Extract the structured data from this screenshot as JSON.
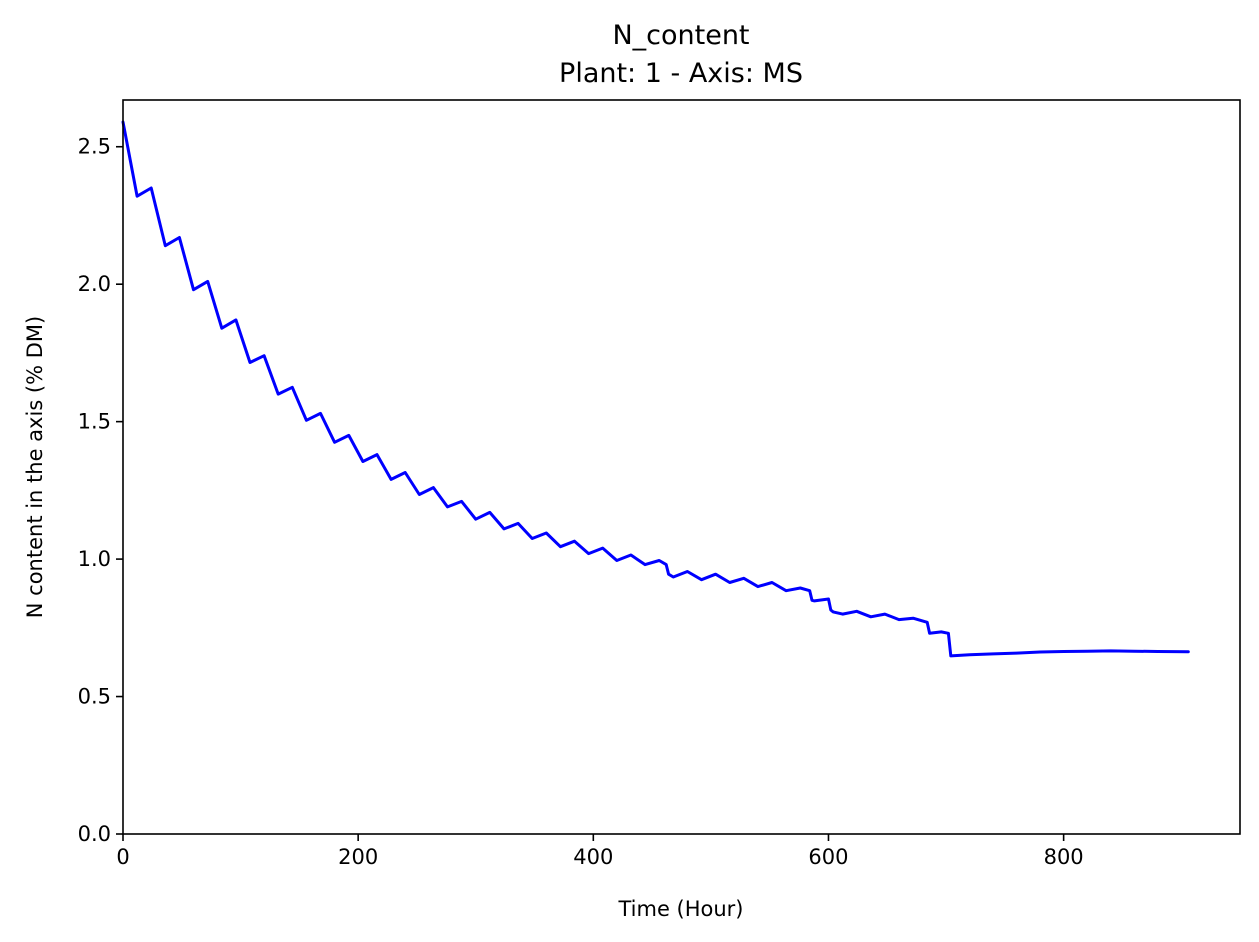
{
  "chart_data": {
    "type": "line",
    "title": "N_content",
    "subtitle": "Plant: 1 - Axis: MS",
    "xlabel": "Time (Hour)",
    "ylabel": "N content in the axis (% DM)",
    "xlim": [
      0,
      950
    ],
    "ylim": [
      0,
      2.67
    ],
    "xticks": [
      0,
      200,
      400,
      600,
      800
    ],
    "yticks": [
      0.0,
      0.5,
      1.0,
      1.5,
      2.0,
      2.5
    ],
    "xtick_labels": [
      "0",
      "200",
      "400",
      "600",
      "800"
    ],
    "ytick_labels": [
      "0.0",
      "0.5",
      "1.0",
      "1.5",
      "2.0",
      "2.5"
    ],
    "grid": false,
    "legend": "none",
    "series": [
      {
        "color": "#0000ff",
        "x": [
          0,
          12,
          24,
          36,
          48,
          60,
          72,
          84,
          96,
          108,
          120,
          132,
          144,
          156,
          168,
          180,
          192,
          204,
          216,
          228,
          240,
          252,
          264,
          276,
          288,
          300,
          312,
          324,
          336,
          348,
          360,
          372,
          384,
          396,
          408,
          420,
          432,
          444,
          456,
          462,
          464,
          468,
          480,
          492,
          504,
          516,
          528,
          540,
          552,
          564,
          576,
          584,
          586,
          588,
          600,
          602,
          604,
          612,
          624,
          636,
          648,
          660,
          672,
          684,
          686,
          696,
          702,
          704,
          720,
          740,
          760,
          780,
          800,
          820,
          840,
          860,
          880,
          906
        ],
        "y": [
          2.59,
          2.32,
          2.35,
          2.14,
          2.17,
          1.98,
          2.01,
          1.84,
          1.87,
          1.715,
          1.74,
          1.6,
          1.625,
          1.505,
          1.53,
          1.425,
          1.45,
          1.355,
          1.38,
          1.29,
          1.315,
          1.235,
          1.26,
          1.19,
          1.21,
          1.145,
          1.17,
          1.11,
          1.13,
          1.075,
          1.095,
          1.045,
          1.065,
          1.02,
          1.04,
          0.995,
          1.015,
          0.98,
          0.995,
          0.98,
          0.945,
          0.935,
          0.955,
          0.925,
          0.945,
          0.915,
          0.93,
          0.9,
          0.915,
          0.885,
          0.895,
          0.885,
          0.85,
          0.848,
          0.855,
          0.815,
          0.808,
          0.8,
          0.81,
          0.79,
          0.8,
          0.78,
          0.785,
          0.77,
          0.73,
          0.735,
          0.73,
          0.648,
          0.652,
          0.655,
          0.658,
          0.662,
          0.664,
          0.665,
          0.666,
          0.665,
          0.664,
          0.663
        ]
      }
    ]
  }
}
